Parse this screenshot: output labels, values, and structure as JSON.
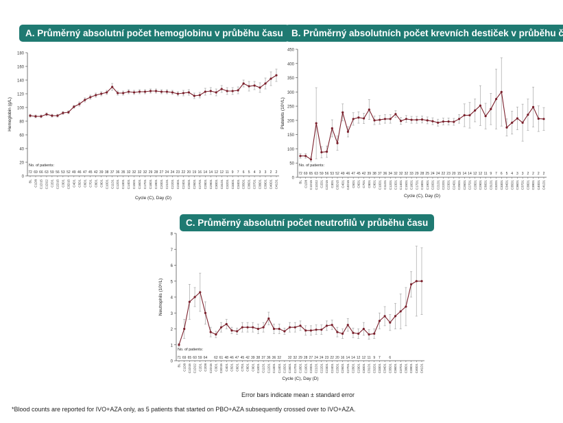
{
  "footer": {
    "error_note": "Error bars indicate mean ± standard error",
    "footnote": "*Blood counts are reported for IVO+AZA only, as 5 patients that started on PBO+AZA subsequently crossed over to IVO+AZA."
  },
  "colors": {
    "title_bg": "#1f7a72",
    "line": "#7a1f2b",
    "error_bar": "#b0b0b0"
  },
  "chart_data": [
    {
      "type": "line",
      "panel": "A",
      "title": "A. Průměrný absolutní počet hemoglobinu v průběhu času",
      "xlabel": "Cycle (C), Day (D)",
      "ylabel": "Hemoglobin (g/L)",
      "ylim": [
        0,
        180
      ],
      "yticks": [
        0,
        20,
        40,
        60,
        80,
        100,
        120,
        140,
        160,
        180
      ],
      "grid": false,
      "patients_label": "No. of patients:",
      "categories": [
        "BL",
        "C1D8",
        "C1D15",
        "C1D22",
        "C2D1",
        "C2D15",
        "C3D1",
        "C3D15",
        "C4D1",
        "C5D1",
        "C6D1",
        "C7D1",
        "C8D1",
        "C9D1",
        "C10D1",
        "C11D1",
        "C12D1",
        "C13D1",
        "C14D1",
        "C15D1",
        "C16D1",
        "C17D1",
        "C18D1",
        "C19D1",
        "C20D1",
        "C21D1",
        "C22D1",
        "C23D1",
        "C24D1",
        "C25D1",
        "C26D1",
        "C27D1",
        "C28D1",
        "C29D1",
        "C30D1",
        "C31D1",
        "C32D1",
        "C33D1",
        "C34D1",
        "C35D1",
        "C36D1",
        "C37D1",
        "C38D1",
        "C39D1",
        "C40D1",
        "C41D1"
      ],
      "patients": [
        "72",
        "69",
        "66",
        "63",
        "59",
        "56",
        "53",
        "52",
        "49",
        "46",
        "47",
        "45",
        "42",
        "39",
        "38",
        "37",
        "36",
        "35",
        "32",
        "32",
        "32",
        "32",
        "29",
        "28",
        "27",
        "24",
        "24",
        "23",
        "22",
        "20",
        "19",
        "16",
        "14",
        "14",
        "12",
        "12",
        "11",
        "9",
        "7",
        "6",
        "5",
        "4",
        "3",
        "3",
        "2",
        "2"
      ],
      "values": [
        88,
        87,
        87,
        90,
        88,
        88,
        92,
        93,
        101,
        105,
        111,
        115,
        118,
        120,
        122,
        130,
        121,
        121,
        123,
        122,
        123,
        123,
        124,
        124,
        123,
        123,
        122,
        120,
        121,
        122,
        117,
        118,
        123,
        124,
        122,
        127,
        124,
        124,
        125,
        135,
        131,
        132,
        129,
        135,
        142,
        147
      ],
      "errors": [
        2,
        2,
        2,
        2,
        2,
        2,
        2,
        2,
        2,
        3,
        3,
        3,
        3,
        3,
        3,
        5,
        3,
        3,
        3,
        3,
        3,
        3,
        3,
        3,
        3,
        3,
        3,
        3,
        4,
        4,
        4,
        4,
        5,
        5,
        5,
        5,
        5,
        5,
        5,
        5,
        7,
        6,
        7,
        8,
        10,
        9
      ]
    },
    {
      "type": "line",
      "panel": "B",
      "title": "B. Průměrný  absolutních počet krevních destiček v průběhu času",
      "xlabel": "Cycle (C), Day (D)",
      "ylabel": "Platelets (10⁹/L)",
      "ylim": [
        0,
        450
      ],
      "yticks": [
        0,
        50,
        100,
        150,
        200,
        250,
        300,
        350,
        400,
        450
      ],
      "grid": false,
      "patients_label": "No. of patients:",
      "categories": [
        "BL",
        "C1D8",
        "C1D15",
        "C1D22",
        "C2D1",
        "C2D15",
        "C3D1",
        "C3D15",
        "C4D1",
        "C4D15",
        "C5D1",
        "C6D1",
        "C7D1",
        "C8D1",
        "C9D1",
        "C10D1",
        "C11D1",
        "C12D1",
        "C13D1",
        "C14D1",
        "C15D1",
        "C16D1",
        "C17D1",
        "C18D1",
        "C19D1",
        "C20D1",
        "C21D1",
        "C22D1",
        "C23D1",
        "C24D1",
        "C25D1",
        "C26D1",
        "C27D1",
        "C28D1",
        "C29D1",
        "C30D1",
        "C31D1",
        "C32D1",
        "C33D1",
        "C34D1",
        "C35D1",
        "C36D1",
        "C37D1",
        "C38D1",
        "C39D1",
        "C40D1",
        "C41D1"
      ],
      "patients": [
        "72",
        "69",
        "65",
        "63",
        "59",
        "56",
        "53",
        "52",
        "49",
        "46",
        "47",
        "45",
        "42",
        "39",
        "38",
        "37",
        "36",
        "34",
        "32",
        "32",
        "32",
        "33",
        "29",
        "28",
        "25",
        "24",
        "24",
        "22",
        "23",
        "20",
        "15",
        "14",
        "14",
        "12",
        "12",
        "11",
        "9",
        "7",
        "6",
        "5",
        "4",
        "3",
        "3",
        "2",
        "2",
        "2",
        "2"
      ],
      "values": [
        75,
        75,
        63,
        190,
        88,
        90,
        172,
        120,
        228,
        160,
        205,
        210,
        207,
        238,
        200,
        202,
        205,
        205,
        222,
        198,
        205,
        202,
        202,
        203,
        200,
        197,
        192,
        196,
        196,
        195,
        205,
        218,
        218,
        235,
        252,
        215,
        240,
        275,
        300,
        175,
        192,
        207,
        192,
        220,
        247,
        206,
        205
      ],
      "errors": [
        8,
        8,
        8,
        125,
        20,
        20,
        30,
        25,
        30,
        18,
        22,
        20,
        18,
        35,
        15,
        15,
        15,
        15,
        12,
        12,
        12,
        12,
        12,
        12,
        12,
        12,
        12,
        12,
        12,
        12,
        15,
        40,
        45,
        40,
        70,
        45,
        55,
        105,
        120,
        30,
        40,
        40,
        65,
        55,
        70,
        45,
        40
      ]
    },
    {
      "type": "line",
      "panel": "C",
      "title": "C. Průměrný absolutní počet neutrofilů v průběhu času",
      "xlabel": "Cycle (C), Day (D)",
      "ylabel": "Neutrophils (10⁹/L)",
      "ylim": [
        0,
        8
      ],
      "yticks": [
        0,
        1,
        2,
        3,
        4,
        5,
        6,
        7,
        8
      ],
      "grid": false,
      "patients_label": "No. of patients:",
      "categories": [
        "BL",
        "C1D8",
        "C1D15",
        "C1D22",
        "C2D1",
        "C2D8",
        "C2D15",
        "C3D1",
        "C3D15",
        "C4D1",
        "C5D1",
        "C6D1",
        "C7D1",
        "C8D1",
        "C9D1",
        "C10D1",
        "C11D1",
        "C12D1",
        "C13D1",
        "C14D1",
        "C15D1",
        "C16D1",
        "C17D1",
        "C18D1",
        "C19D1",
        "C20D1",
        "C21D1",
        "C22D1",
        "C23D1",
        "C24D1",
        "C25D1",
        "C26D1",
        "C27D1",
        "C28D1",
        "C29D1",
        "C30D1",
        "C31D1",
        "C32D1",
        "C33D1",
        "C34D1",
        "C35D1",
        "C36D1",
        "C37D1",
        "C38D1",
        "C39D1",
        "C40D1",
        "C41D1"
      ],
      "patients": [
        "71",
        "69",
        "65",
        "60",
        "59",
        "64",
        "",
        "62",
        "61",
        "48",
        "46",
        "47",
        "45",
        "42",
        "39",
        "38",
        "37",
        "36",
        "36",
        "32",
        "",
        "32",
        "32",
        "29",
        "28",
        "27",
        "24",
        "24",
        "23",
        "22",
        "20",
        "16",
        "14",
        "14",
        "12",
        "12",
        "11",
        "9",
        "7",
        "",
        "6",
        "",
        "",
        "",
        "",
        "",
        ""
      ],
      "values": [
        1.0,
        2.0,
        3.7,
        4.0,
        4.3,
        3.0,
        1.8,
        1.65,
        2.1,
        2.3,
        1.9,
        1.85,
        2.1,
        2.1,
        2.1,
        2.0,
        2.1,
        2.65,
        2.0,
        2.0,
        1.85,
        2.1,
        2.1,
        2.2,
        1.9,
        1.9,
        1.95,
        1.95,
        2.2,
        2.25,
        1.8,
        1.7,
        2.25,
        1.75,
        1.7,
        2.0,
        1.65,
        1.7,
        2.5,
        2.8,
        2.4,
        2.8,
        3.1,
        3.4,
        4.8,
        5.0,
        5.0
      ],
      "errors": [
        0.1,
        0.6,
        1.1,
        0.6,
        1.2,
        0.7,
        0.3,
        0.2,
        0.3,
        0.3,
        0.2,
        0.2,
        0.3,
        0.3,
        0.3,
        0.3,
        0.3,
        0.4,
        0.3,
        0.3,
        0.2,
        0.3,
        0.3,
        0.3,
        0.3,
        0.3,
        0.3,
        0.3,
        0.3,
        0.3,
        0.3,
        0.3,
        0.4,
        0.3,
        0.3,
        0.4,
        0.3,
        0.3,
        0.5,
        0.6,
        0.5,
        0.8,
        1.1,
        1.2,
        0.8,
        2.2,
        2.1
      ]
    }
  ]
}
